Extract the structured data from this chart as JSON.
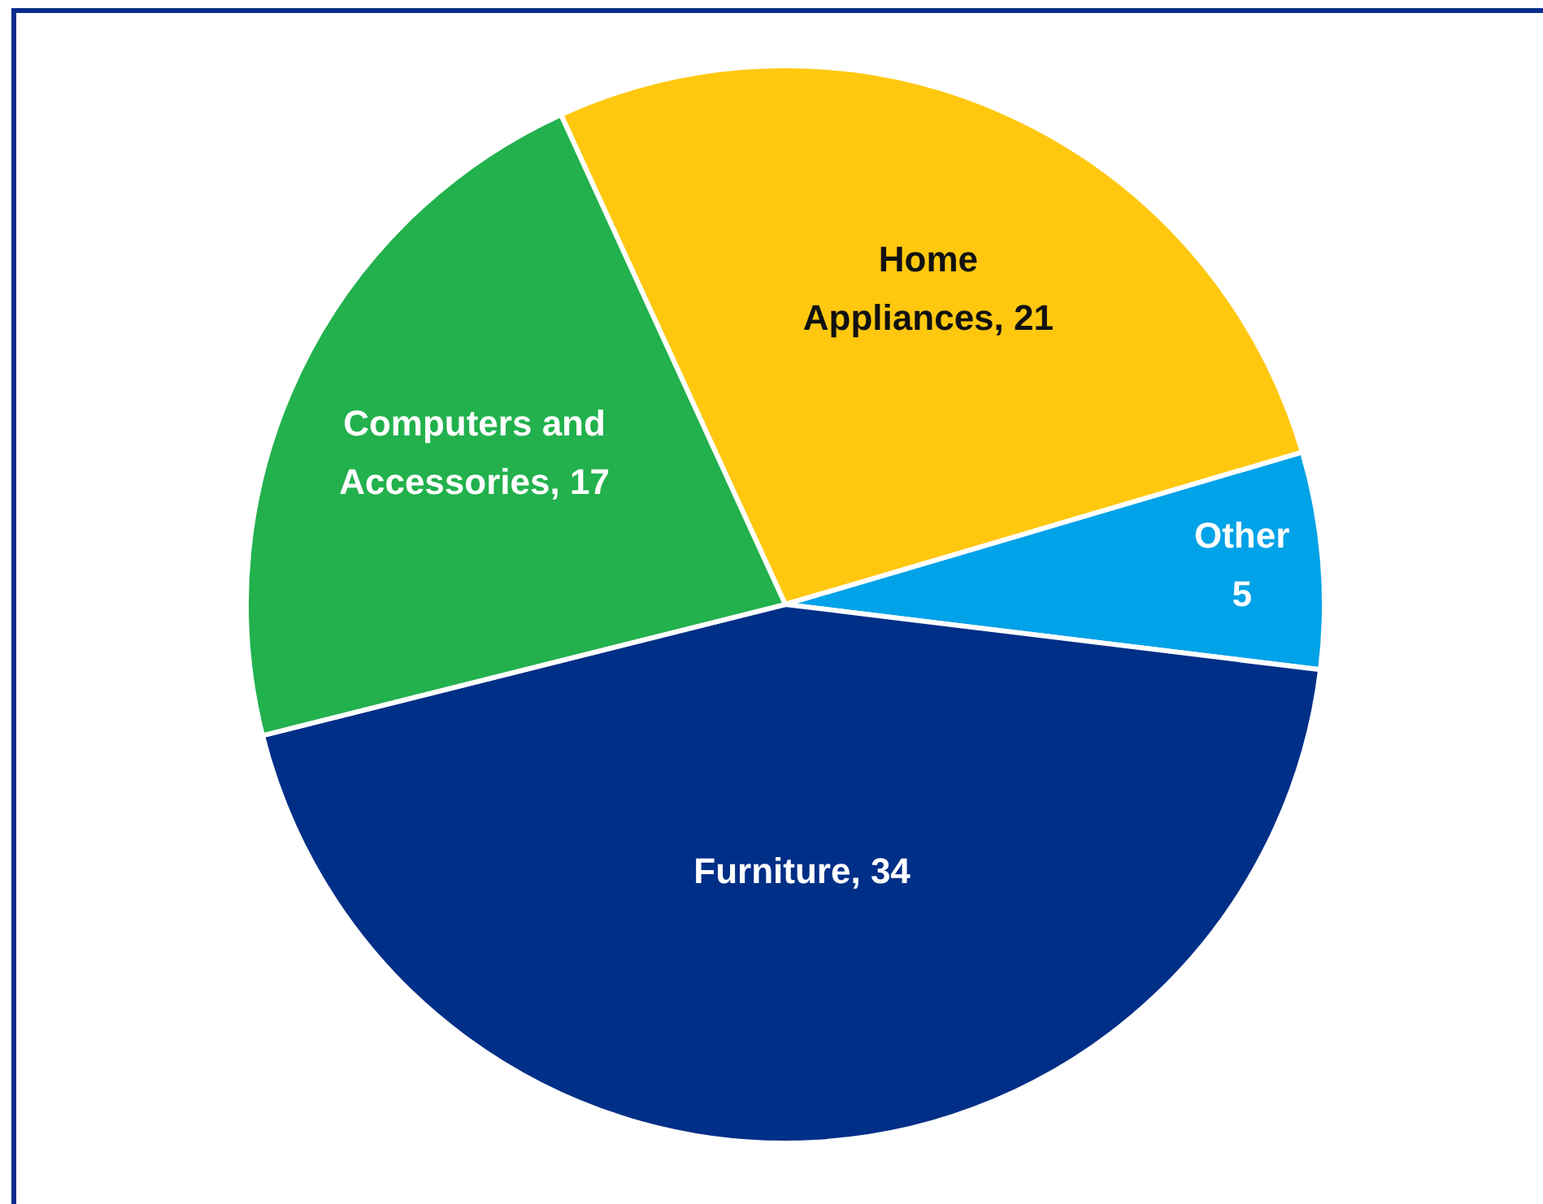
{
  "chart_data": {
    "type": "pie",
    "categories": [
      "Home Appliances",
      "Other",
      "Furniture",
      "Computers and Accessories"
    ],
    "values": [
      21,
      5,
      34,
      17
    ],
    "colors": [
      "#ffc80f",
      "#00a2e8",
      "#002f87",
      "#22b14c"
    ],
    "value_labels": [
      ", 21",
      "5",
      ", 34",
      ", 17"
    ],
    "legend": false
  }
}
